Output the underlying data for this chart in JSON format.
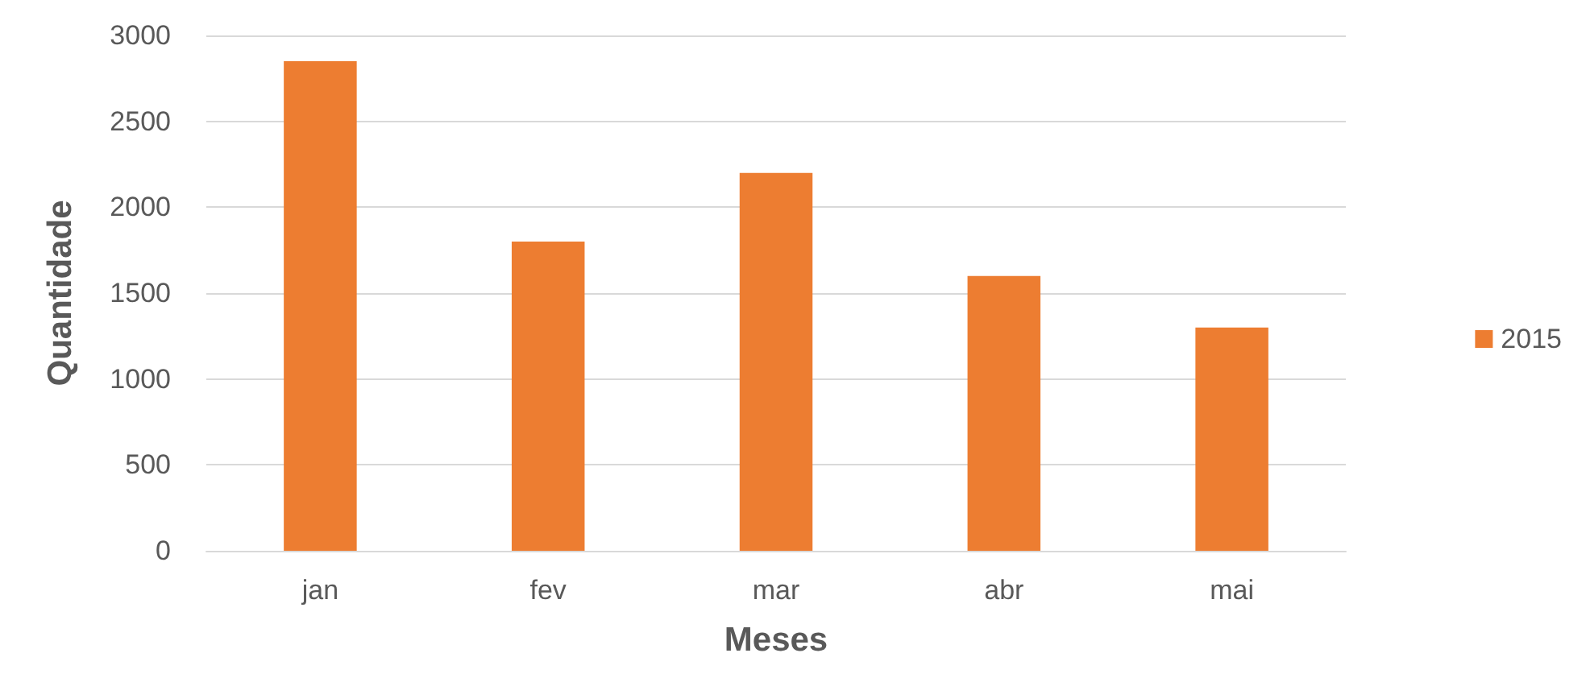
{
  "chart_data": {
    "type": "bar",
    "xlabel": "Meses",
    "ylabel": "Quantidade",
    "categories": [
      "jan",
      "fev",
      "mar",
      "abr",
      "mai"
    ],
    "series": [
      {
        "name": "2015",
        "color": "#ed7d31",
        "values": [
          2850,
          1800,
          2200,
          1600,
          1300
        ]
      }
    ],
    "ylim": [
      0,
      3000
    ],
    "yticks": [
      0,
      500,
      1000,
      1500,
      2000,
      2500,
      3000
    ],
    "grid": "y",
    "legend": "right"
  }
}
